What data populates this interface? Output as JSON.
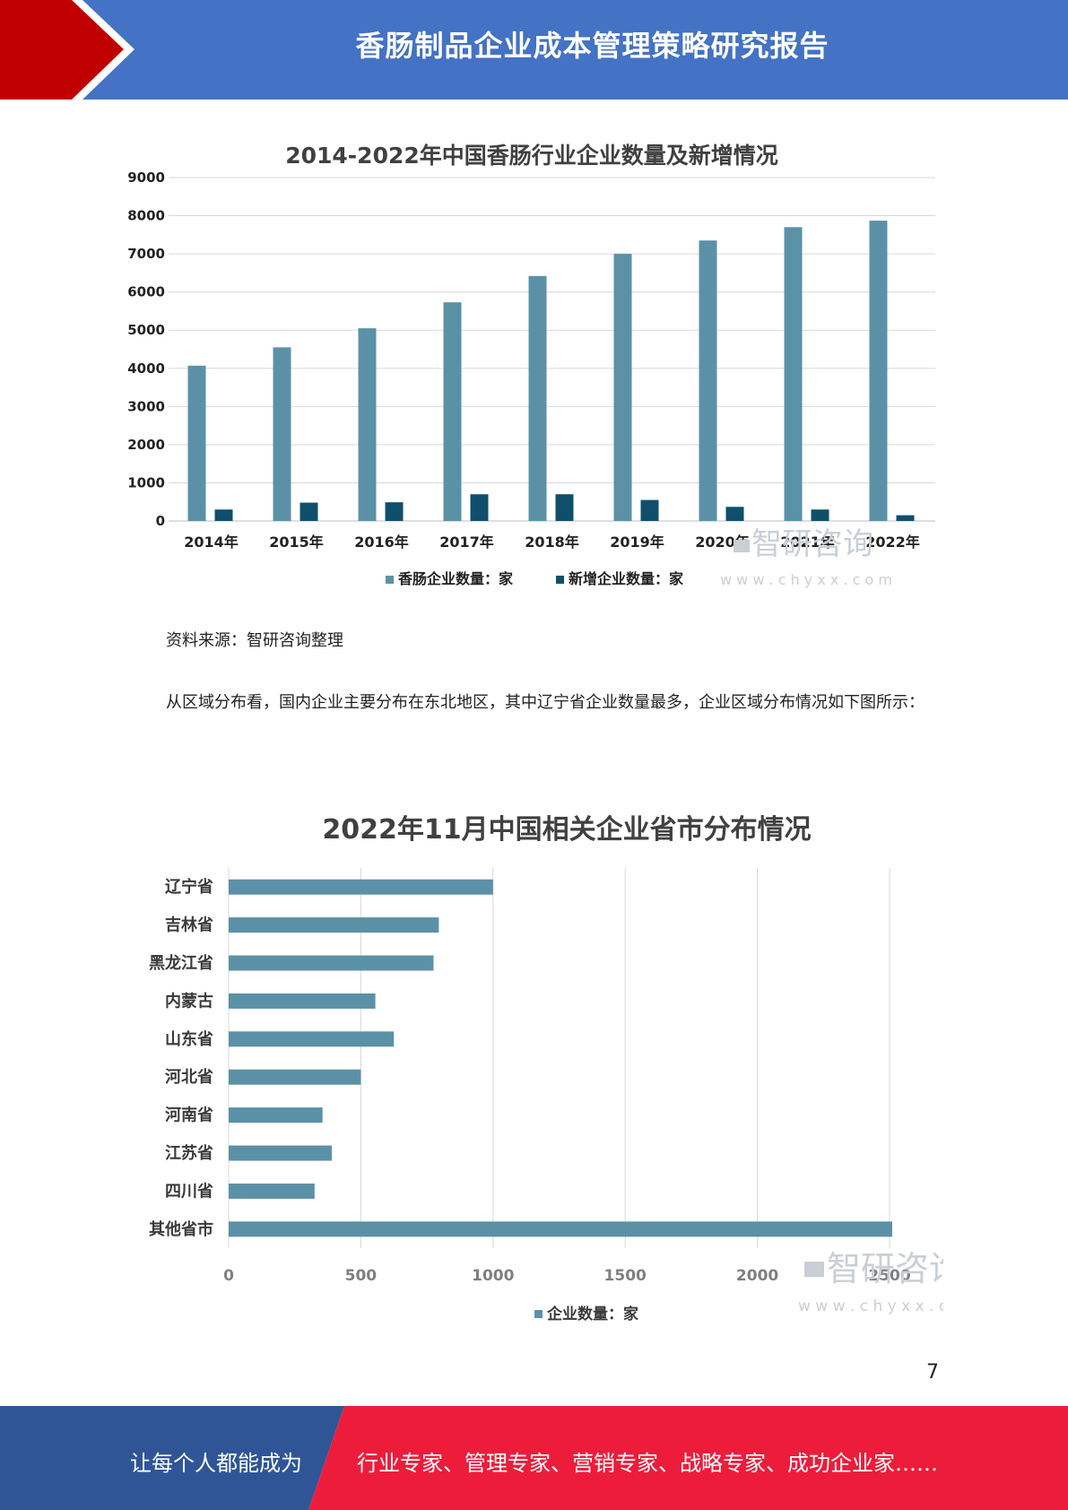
{
  "header": {
    "title": "香肠制品企业成本管理策略研究报告"
  },
  "source_note": "资料来源：智研咨询整理",
  "paragraph": "从区域分布看，国内企业主要分布在东北地区，其中辽宁省企业数量最多，企业区域分布情况如下图所示：",
  "watermark": {
    "brand": "智研咨询",
    "url": "w w w . c h y x x . c o m"
  },
  "page_number": "7",
  "footer": {
    "left_text": "让每个人都能成为",
    "right_text": "行业专家、管理专家、营销专家、战略专家、成功企业家……"
  },
  "colors": {
    "header_blue": "#4472c4",
    "header_red": "#c00000",
    "bar_light": "#5b91a7",
    "bar_dark": "#0f4f6b",
    "footer_blue": "#2f5597",
    "footer_red": "#ee1c3b"
  },
  "chart_data": [
    {
      "type": "bar",
      "title": "2014-2022年中国香肠行业企业数量及新增情况",
      "categories": [
        "2014年",
        "2015年",
        "2016年",
        "2017年",
        "2018年",
        "2019年",
        "2020年",
        "2021年",
        "2022年"
      ],
      "series": [
        {
          "name": "香肠企业数量：家",
          "values": [
            4070,
            4550,
            5050,
            5730,
            6420,
            7000,
            7350,
            7700,
            7870
          ]
        },
        {
          "name": "新增企业数量：家",
          "values": [
            300,
            480,
            490,
            700,
            700,
            550,
            370,
            300,
            150
          ]
        }
      ],
      "ylim": [
        0,
        9000
      ],
      "yticks": [
        "0",
        "1000",
        "2000",
        "3000",
        "4000",
        "5000",
        "6000",
        "7000",
        "8000",
        "9000"
      ],
      "grid": true,
      "legend": "bottom"
    },
    {
      "type": "bar",
      "orientation": "horizontal",
      "title": "2022年11月中国相关企业省市分布情况",
      "categories": [
        "辽宁省",
        "吉林省",
        "黑龙江省",
        "内蒙古",
        "山东省",
        "河北省",
        "河南省",
        "江苏省",
        "四川省",
        "其他省市"
      ],
      "series": [
        {
          "name": "企业数量：家",
          "values": [
            1000,
            795,
            775,
            555,
            625,
            500,
            355,
            390,
            325,
            2510
          ]
        }
      ],
      "xlim": [
        0,
        2500
      ],
      "xticks": [
        "0",
        "500",
        "1000",
        "1500",
        "2000",
        "2500"
      ],
      "grid": true,
      "legend": "bottom"
    }
  ]
}
